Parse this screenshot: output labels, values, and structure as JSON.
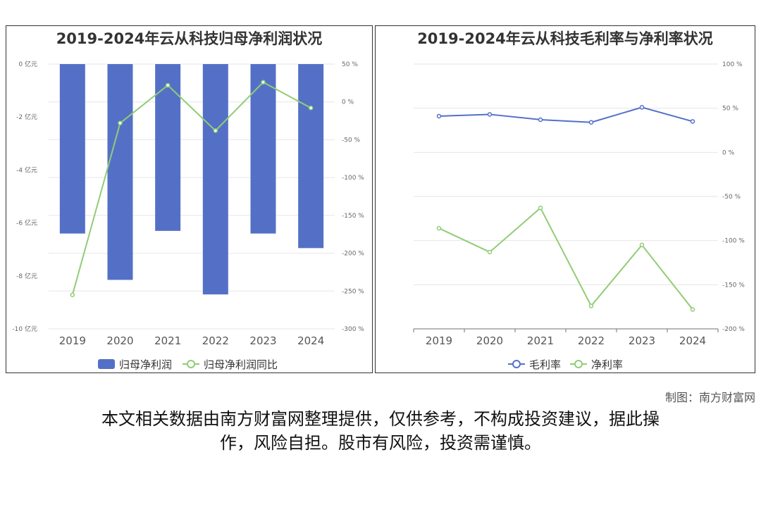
{
  "left_chart": {
    "title": "2019-2024年云从科技归母净利润状况",
    "legend_bar": "归母净利润",
    "legend_line": "归母净利润同比"
  },
  "right_chart": {
    "title": "2019-2024年云从科技毛利率与净利率状况",
    "legend_gross": "毛利率",
    "legend_net": "净利率"
  },
  "colors": {
    "bar": "#5470c6",
    "line_green": "#91cc75",
    "line_blue": "#5470c6"
  },
  "chart_data": [
    {
      "type": "bar",
      "title": "2019-2024年云从科技归母净利润状况",
      "categories": [
        "2019",
        "2020",
        "2021",
        "2022",
        "2023",
        "2024"
      ],
      "y_left_ticks": [
        "0 亿元",
        "-2 亿元",
        "-4 亿元",
        "-6 亿元",
        "-8 亿元",
        "-10 亿元"
      ],
      "y_right_ticks": [
        "50 %",
        "0 %",
        "-50 %",
        "-100 %",
        "-150 %",
        "-200 %",
        "-250 %",
        "-300 %"
      ],
      "ylim_left": [
        -10,
        0
      ],
      "ylim_right": [
        -300,
        50
      ],
      "series": [
        {
          "name": "归母净利润",
          "type": "bar",
          "axis": "left",
          "values": [
            -6.4,
            -8.15,
            -6.3,
            -8.7,
            -6.4,
            -6.95
          ]
        },
        {
          "name": "归母净利润同比",
          "type": "line",
          "axis": "right",
          "values": [
            -255,
            -28,
            22,
            -38,
            26,
            -8
          ]
        }
      ]
    },
    {
      "type": "line",
      "title": "2019-2024年云从科技毛利率与净利率状况",
      "categories": [
        "2019",
        "2020",
        "2021",
        "2022",
        "2023",
        "2024"
      ],
      "y_ticks": [
        "100 %",
        "50 %",
        "0 %",
        "-50 %",
        "-100 %",
        "-150 %",
        "-200 %"
      ],
      "ylim": [
        -200,
        100
      ],
      "series": [
        {
          "name": "毛利率",
          "values": [
            41,
            43,
            37,
            34,
            51,
            35
          ]
        },
        {
          "name": "净利率",
          "values": [
            -86,
            -113,
            -63,
            -174,
            -105,
            -178
          ]
        }
      ]
    }
  ],
  "footer": {
    "credit": "制图：南方财富网",
    "disclaimer_line1": "本文相关数据由南方财富网整理提供，仅供参考，不构成投资建议，据此操",
    "disclaimer_line2": "作，风险自担。股市有风险，投资需谨慎。"
  }
}
